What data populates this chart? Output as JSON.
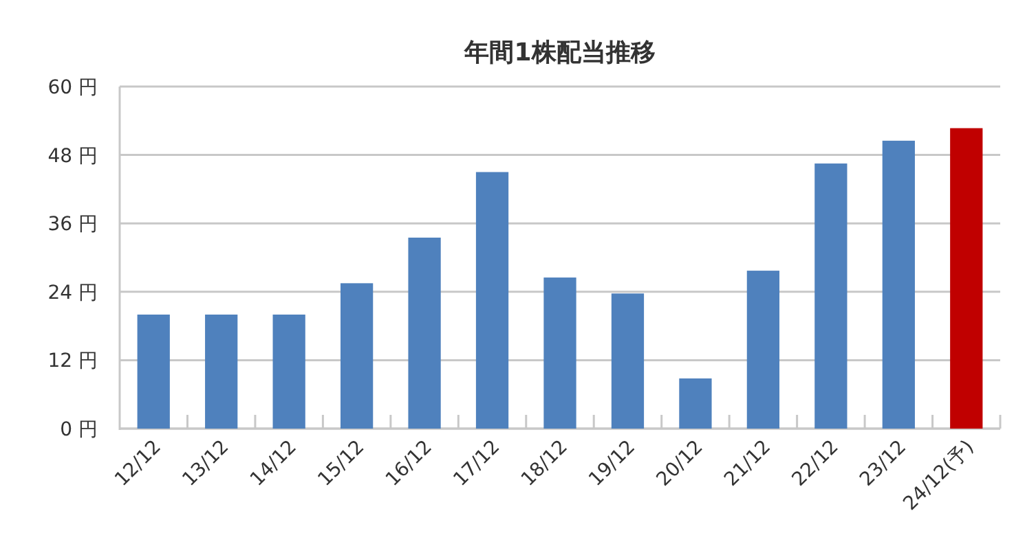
{
  "chart_data": {
    "type": "bar",
    "title": "年間1株配当推移",
    "categories": [
      "12/12",
      "13/12",
      "14/12",
      "15/12",
      "16/12",
      "17/12",
      "18/12",
      "19/12",
      "20/12",
      "21/12",
      "22/12",
      "23/12",
      "24/12(予)"
    ],
    "values": [
      20,
      20,
      20,
      25.5,
      33.5,
      45,
      26.5,
      23.7,
      8.8,
      27.7,
      46.5,
      50.5,
      52.7
    ],
    "colors": [
      "#4f81bd",
      "#4f81bd",
      "#4f81bd",
      "#4f81bd",
      "#4f81bd",
      "#4f81bd",
      "#4f81bd",
      "#4f81bd",
      "#4f81bd",
      "#4f81bd",
      "#4f81bd",
      "#4f81bd",
      "#c00000"
    ],
    "ylim": [
      0,
      60
    ],
    "yticks": [
      {
        "value": 0,
        "label": "0 円"
      },
      {
        "value": 12,
        "label": "12 円"
      },
      {
        "value": 24,
        "label": "24 円"
      },
      {
        "value": 36,
        "label": "36 円"
      },
      {
        "value": 48,
        "label": "48 円"
      },
      {
        "value": 60,
        "label": "60 円"
      }
    ],
    "grid": "y"
  }
}
